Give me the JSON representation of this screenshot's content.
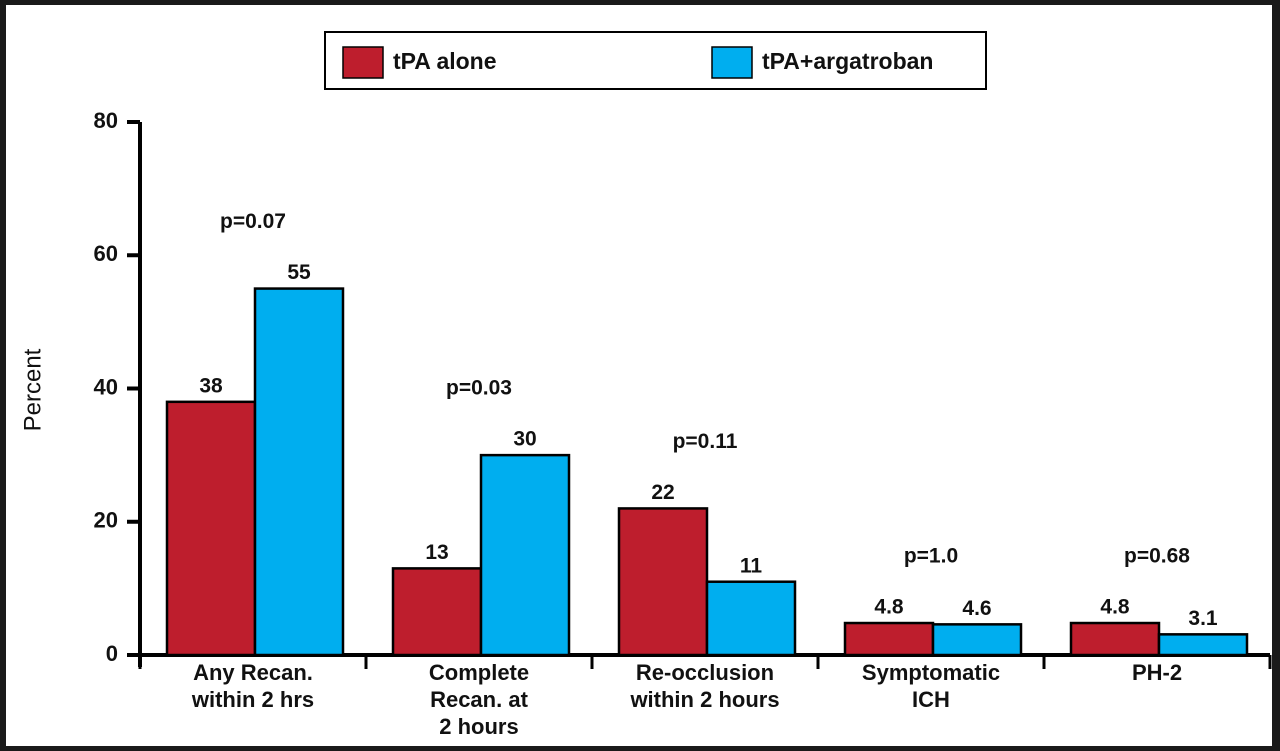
{
  "chart_data": {
    "type": "bar",
    "y_label": "Percent",
    "categories": [
      [
        "Any Recan.",
        "within 2 hrs"
      ],
      [
        "Complete",
        "Recan. at",
        "2 hours"
      ],
      [
        "Re-occlusion",
        "within 2 hours"
      ],
      [
        "Symptomatic",
        "ICH"
      ],
      [
        "PH-2"
      ]
    ],
    "series": [
      {
        "name": "tPA alone",
        "color": "#be1e2d",
        "values": [
          38,
          13,
          22,
          4.8,
          4.8
        ]
      },
      {
        "name": "tPA+argatroban",
        "color": "#00aeef",
        "values": [
          55,
          30,
          11,
          4.6,
          3.1
        ]
      }
    ],
    "annotations": [
      "p=0.07",
      "p=0.03",
      "p=0.11",
      "p=1.0",
      "p=0.68"
    ],
    "ylim": [
      0,
      80
    ],
    "yticks": [
      0,
      20,
      40,
      60,
      80
    ]
  }
}
